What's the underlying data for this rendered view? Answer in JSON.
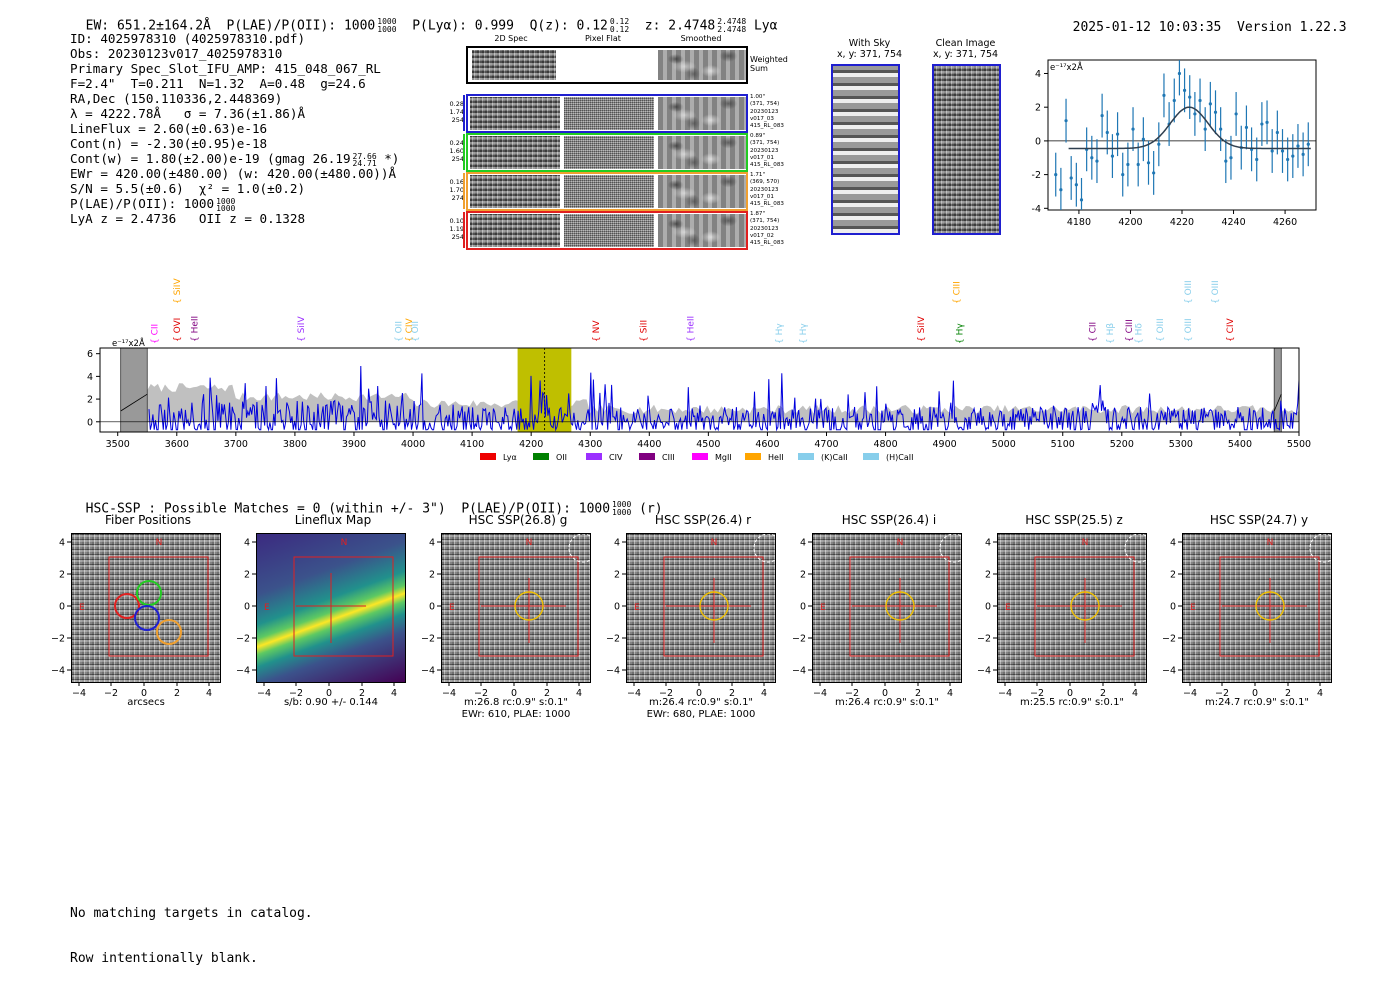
{
  "header": {
    "ew": "EW: 651.2±164.2Å",
    "plae": "P(LAE)/P(OII): 1000",
    "plae_hi": "1000",
    "plae_lo": "1000",
    "plya": "P(Lyα): 0.999",
    "qz": "Q(z): 0.12",
    "qz_hi": "0.12",
    "qz_lo": "0.12",
    "z": "z: 2.4748",
    "z_hi": "2.4748",
    "z_lo": "2.4748",
    "z_line": "Lyα",
    "timestamp": "2025-01-12 10:03:35",
    "version": "Version 1.22.3"
  },
  "info": {
    "id": "ID: 4025978310 (4025978310.pdf)",
    "obs": "Obs: 20230123v017_4025978310",
    "primary": "Primary Spec_Slot_IFU_AMP: 415_048_067_RL",
    "fiber": "F=2.4\"  T=0.211  N=1.32  A=0.48  g=24.6",
    "radec": "RA,Dec (150.110336,2.448369)",
    "lambda": "λ = 4222.78Å   σ = 7.36(±1.86)Å",
    "lineflux": "LineFlux = 2.60(±0.63)e-16",
    "contn": "Cont(n) = -2.30(±0.95)e-18",
    "contw": "Cont(w) = 1.80(±2.00)e-19 (gmag 26.19",
    "contw_hi": "27.66",
    "contw_lo": "24.71",
    "contw_end": " *)",
    "ewr": "EWr = 420.00(±480.00) (w: 420.00(±480.00))Å",
    "sn": "S/N = 5.5(±0.6)  χ² = 1.0(±0.2)",
    "plae": "P(LAE)/P(OII): 1000",
    "plae_hi": "1000",
    "plae_lo": "1000",
    "lyaz": "LyA z = 2.4736   OII z = 0.1328"
  },
  "spec2d": {
    "col_titles": [
      "2D Spec",
      "Pixel Flat",
      "Smoothed"
    ],
    "weighted_label": "Weighted Sum",
    "rows": [
      {
        "left": [
          "0.28",
          "1.74",
          "254"
        ],
        "right": [
          "1.00\"",
          "(371, 754)",
          "20230123",
          "v017_03",
          "415_RL_083"
        ],
        "color": "#1f1fcf"
      },
      {
        "left": [
          "0.24",
          "1.60",
          "254"
        ],
        "right": [
          "0.89\"",
          "(371, 754)",
          "20230123",
          "v017_01",
          "415_RL_083"
        ],
        "color": "#22cc22"
      },
      {
        "left": [
          "0.16",
          "1.70",
          "274"
        ],
        "right": [
          "1.71\"",
          "(369, 570)",
          "20230123",
          "v017_01",
          "415_RL_083"
        ],
        "color": "#f0a030"
      },
      {
        "left": [
          "0.10",
          "1.19",
          "254"
        ],
        "right": [
          "1.87\"",
          "(371, 754)",
          "20230123",
          "v017_02",
          "415_RL_083"
        ],
        "color": "#e02020"
      }
    ]
  },
  "sky_panels": {
    "with_sky_title": "With Sky",
    "with_sky_sub": "x, y: 371, 754",
    "clean_title": "Clean Image",
    "clean_sub": "x, y: 371, 754"
  },
  "zoom_chart": {
    "type": "scatter",
    "ylabel": "e⁻¹⁷x2Å",
    "xlim": [
      4168,
      4272
    ],
    "ylim": [
      -4.1,
      4.8
    ],
    "xticks": [
      4180,
      4200,
      4220,
      4240,
      4260
    ],
    "yticks": [
      -4,
      -2,
      0,
      2,
      4
    ],
    "x": [
      4171,
      4173,
      4175,
      4177,
      4179,
      4181,
      4183,
      4185,
      4187,
      4189,
      4191,
      4193,
      4195,
      4197,
      4199,
      4201,
      4203,
      4205,
      4207,
      4209,
      4211,
      4213,
      4215,
      4217,
      4219,
      4221,
      4223,
      4225,
      4227,
      4229,
      4231,
      4233,
      4235,
      4237,
      4239,
      4241,
      4243,
      4245,
      4247,
      4249,
      4251,
      4253,
      4255,
      4257,
      4259,
      4261,
      4263,
      4265,
      4267,
      4269
    ],
    "y": [
      -2.0,
      -2.9,
      1.2,
      -2.2,
      -2.6,
      -3.5,
      -0.5,
      -1.0,
      -1.2,
      1.5,
      0.5,
      -0.9,
      0.4,
      -2.0,
      -1.4,
      0.7,
      -1.4,
      0.1,
      -1.3,
      -1.9,
      -0.2,
      2.7,
      1.0,
      2.4,
      4.0,
      3.0,
      2.6,
      1.6,
      2.4,
      0.7,
      2.2,
      1.7,
      0.7,
      -1.2,
      -1.0,
      1.6,
      -0.4,
      0.8,
      -0.5,
      -1.1,
      1.0,
      1.1,
      -0.6,
      0.5,
      -0.6,
      -1.1,
      -0.9,
      -0.3,
      -0.8,
      -0.2
    ],
    "err": 1.3,
    "fit": {
      "amp": 2.45,
      "center": 4222.8,
      "sigma": 7.36,
      "offset": -0.45
    }
  },
  "main_spectrum": {
    "type": "line",
    "ylabel": "e⁻¹⁷x2Å",
    "xlim": [
      3470,
      5500
    ],
    "ylim": [
      -0.9,
      6.5
    ],
    "xticks": [
      3500,
      3600,
      3700,
      3800,
      3900,
      4000,
      4100,
      4200,
      4300,
      4400,
      4500,
      4600,
      4700,
      4800,
      4900,
      5000,
      5100,
      5200,
      5300,
      5400,
      5500
    ],
    "yticks": [
      0,
      2,
      4,
      6
    ],
    "highlight": [
      4177,
      4268
    ],
    "line_center": 4222.8,
    "masked": [
      [
        3505,
        3550
      ],
      [
        5458,
        5470
      ]
    ],
    "series_color": "#0000dd",
    "seed": 7,
    "line_labels": [
      {
        "name": "CII",
        "wave": 3562,
        "color": "#ff00ff",
        "tier": 0
      },
      {
        "name": "SiIV",
        "wave": 3600,
        "color": "#ffa500",
        "tier": 2
      },
      {
        "name": "OVI",
        "wave": 3600,
        "color": "#e00000",
        "tier": 1
      },
      {
        "name": "HeII",
        "wave": 3630,
        "color": "#800080",
        "tier": 1
      },
      {
        "name": "SiIV",
        "wave": 3810,
        "color": "#9b30ff",
        "tier": 1
      },
      {
        "name": "OII",
        "wave": 3975,
        "color": "#87ceeb",
        "tier": 1
      },
      {
        "name": "CIV",
        "wave": 3993,
        "color": "#ffa500",
        "tier": 1
      },
      {
        "name": "OII",
        "wave": 4003,
        "color": "#87ceeb",
        "tier": 1
      },
      {
        "name": "NV",
        "wave": 4310,
        "color": "#e00000",
        "tier": 1
      },
      {
        "name": "SiII",
        "wave": 4390,
        "color": "#e00000",
        "tier": 1
      },
      {
        "name": "HeII",
        "wave": 4470,
        "color": "#9b30ff",
        "tier": 1
      },
      {
        "name": "Hγ",
        "wave": 4620,
        "color": "#87ceeb",
        "tier": 0
      },
      {
        "name": "Hγ",
        "wave": 4660,
        "color": "#87ceeb",
        "tier": 0
      },
      {
        "name": "SiIV",
        "wave": 4860,
        "color": "#e00000",
        "tier": 1
      },
      {
        "name": "CIII",
        "wave": 4920,
        "color": "#ffa500",
        "tier": 2
      },
      {
        "name": "Hγ",
        "wave": 4925,
        "color": "#008000",
        "tier": 0
      },
      {
        "name": "CII",
        "wave": 5150,
        "color": "#800080",
        "tier": 1
      },
      {
        "name": "Hβ",
        "wave": 5180,
        "color": "#87ceeb",
        "tier": 0
      },
      {
        "name": "CIII",
        "wave": 5212,
        "color": "#800080",
        "tier": 1
      },
      {
        "name": "Hδ",
        "wave": 5228,
        "color": "#87ceeb",
        "tier": 0
      },
      {
        "name": "OIII",
        "wave": 5265,
        "color": "#87ceeb",
        "tier": 1
      },
      {
        "name": "OIII",
        "wave": 5312,
        "color": "#87ceeb",
        "tier": 2
      },
      {
        "name": "OIII",
        "wave": 5312,
        "color": "#87ceeb",
        "tier": 1
      },
      {
        "name": "OIII",
        "wave": 5358,
        "color": "#87ceeb",
        "tier": 2
      },
      {
        "name": "CIV",
        "wave": 5383,
        "color": "#e00000",
        "tier": 1
      }
    ],
    "legend": [
      {
        "label": "Lyα",
        "color": "#ee0000"
      },
      {
        "label": "OII",
        "color": "#008000"
      },
      {
        "label": "CIV",
        "color": "#9b30ff"
      },
      {
        "label": "CIII",
        "color": "#800080"
      },
      {
        "label": "MgII",
        "color": "#ff00ff"
      },
      {
        "label": "HeII",
        "color": "#ffa500"
      },
      {
        "label": "(K)CaII",
        "color": "#87ceeb"
      },
      {
        "label": "(H)CaII",
        "color": "#87ceeb"
      }
    ]
  },
  "hsc": {
    "summary": "HSC-SSP : Possible Matches = 0 (within +/- 3\")  P(LAE)/P(OII): 1000",
    "summary_hi": "1000",
    "summary_lo": "1000",
    "summary_end": " (r)",
    "axis_ticks": [
      "−4",
      "−2",
      "0",
      "2",
      "4"
    ],
    "panels": [
      {
        "title": "Fiber Positions",
        "kind": "fibers",
        "caption": [
          "arcsecs"
        ]
      },
      {
        "title": "Lineflux Map",
        "kind": "lineflux",
        "caption": [
          "s/b: 0.90 +/- 0.144"
        ]
      },
      {
        "title": "HSC SSP(26.8) g",
        "kind": "cutout",
        "caption": [
          "m:26.8 rc:0.9\"  s:0.1\"",
          "EWr: 610, PLAE: 1000"
        ]
      },
      {
        "title": "HSC SSP(26.4) r",
        "kind": "cutout",
        "caption": [
          "m:26.4 rc:0.9\"  s:0.1\"",
          "EWr: 680, PLAE: 1000"
        ]
      },
      {
        "title": "HSC SSP(26.4) i",
        "kind": "cutout",
        "caption": [
          "m:26.4 rc:0.9\"  s:0.1\""
        ]
      },
      {
        "title": "HSC SSP(25.5) z",
        "kind": "cutout",
        "caption": [
          "m:25.5 rc:0.9\"  s:0.1\""
        ]
      },
      {
        "title": "HSC SSP(24.7) y",
        "kind": "cutout",
        "caption": [
          "m:24.7 rc:0.9\"  s:0.1\""
        ]
      }
    ],
    "compass_n": "N",
    "compass_e": "E"
  },
  "footer": {
    "line1": "No matching targets in catalog.",
    "line2": "Row intentionally blank."
  }
}
